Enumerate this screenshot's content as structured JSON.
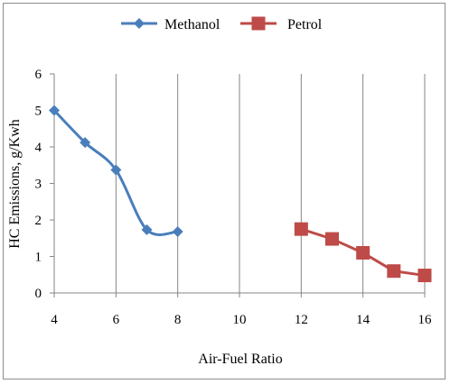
{
  "chart_data": {
    "type": "line",
    "title": "",
    "xlabel": "Air-Fuel Ratio",
    "ylabel": "HC Emissions, g/Kwh",
    "xlim": [
      4,
      16
    ],
    "ylim": [
      0,
      6
    ],
    "xticks": [
      4,
      6,
      8,
      10,
      12,
      14,
      16
    ],
    "yticks": [
      0,
      1,
      2,
      3,
      4,
      5,
      6
    ],
    "grid": "vertical",
    "legend_position": "top",
    "series": [
      {
        "name": "Methanol",
        "color": "#4a7ebb",
        "marker": "diamond",
        "smooth": true,
        "x": [
          4,
          5,
          6,
          7,
          8
        ],
        "y": [
          5.0,
          4.12,
          3.37,
          1.73,
          1.68
        ]
      },
      {
        "name": "Petrol",
        "color": "#be4b48",
        "marker": "square",
        "smooth": false,
        "x": [
          12,
          13,
          14,
          15,
          16
        ],
        "y": [
          1.75,
          1.48,
          1.1,
          0.6,
          0.48
        ]
      }
    ]
  }
}
